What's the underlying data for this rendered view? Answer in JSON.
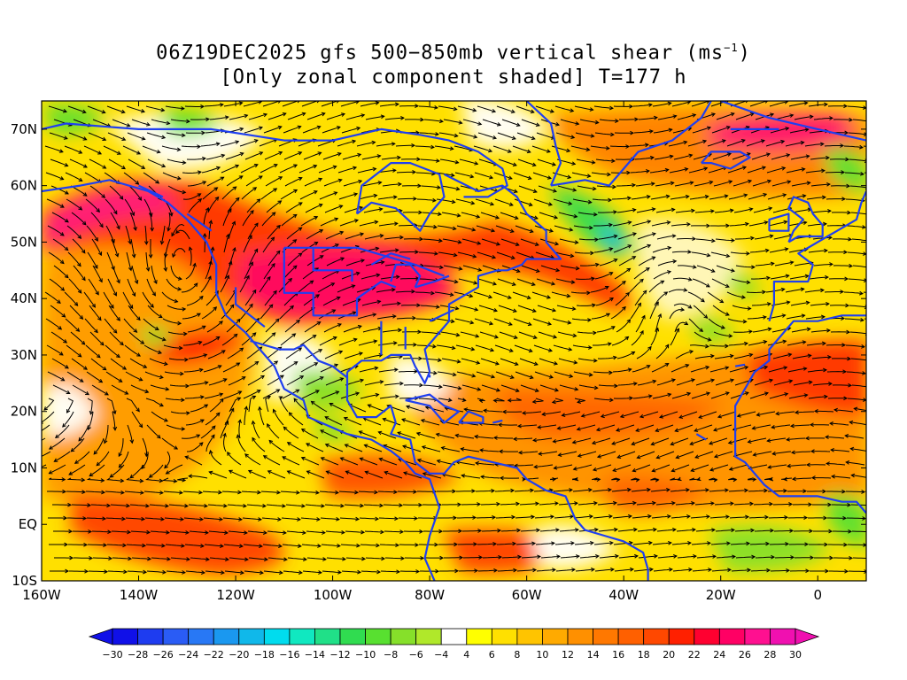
{
  "title": {
    "line1_prefix": "06Z19DEC2025 gfs 500−850mb vertical shear (ms",
    "line1_sup": "−1",
    "line1_suffix": ")",
    "line2": "[Only zonal component shaded] T=177 h"
  },
  "map": {
    "lon_range": [
      -160,
      10
    ],
    "lat_range": [
      -10,
      75
    ],
    "lon_ticks": [
      {
        "value": -160,
        "label": "160W"
      },
      {
        "value": -140,
        "label": "140W"
      },
      {
        "value": -120,
        "label": "120W"
      },
      {
        "value": -100,
        "label": "100W"
      },
      {
        "value": -80,
        "label": "80W"
      },
      {
        "value": -60,
        "label": "60W"
      },
      {
        "value": -40,
        "label": "40W"
      },
      {
        "value": -20,
        "label": "20W"
      },
      {
        "value": 0,
        "label": "0"
      }
    ],
    "lat_ticks": [
      {
        "value": 70,
        "label": "70N"
      },
      {
        "value": 60,
        "label": "60N"
      },
      {
        "value": 50,
        "label": "50N"
      },
      {
        "value": 40,
        "label": "40N"
      },
      {
        "value": 30,
        "label": "30N"
      },
      {
        "value": 20,
        "label": "20N"
      },
      {
        "value": 10,
        "label": "10N"
      },
      {
        "value": 0,
        "label": "EQ"
      },
      {
        "value": -10,
        "label": "10S"
      }
    ],
    "coastline_color": "#1f3ff0"
  },
  "colorbar": {
    "labels": [
      "-30",
      "-28",
      "-26",
      "-24",
      "-22",
      "-20",
      "-18",
      "-16",
      "-14",
      "-12",
      "-10",
      "-8",
      "-6",
      "-4",
      "4",
      "6",
      "8",
      "10",
      "12",
      "14",
      "16",
      "18",
      "20",
      "22",
      "24",
      "26",
      "28",
      "30"
    ],
    "colors": [
      "#1010e8",
      "#1e3cf0",
      "#2a5cf5",
      "#2878f5",
      "#1a98f0",
      "#10b8ea",
      "#00dcee",
      "#10e8c0",
      "#20e088",
      "#30dc50",
      "#58e030",
      "#86e02a",
      "#b0e82a",
      "#ffffff",
      "#ffff00",
      "#ffe000",
      "#ffc400",
      "#ffaa00",
      "#ff9000",
      "#ff7800",
      "#ff6000",
      "#ff4800",
      "#ff2000",
      "#ff0030",
      "#ff0064",
      "#ff1090",
      "#f010b0"
    ]
  }
}
